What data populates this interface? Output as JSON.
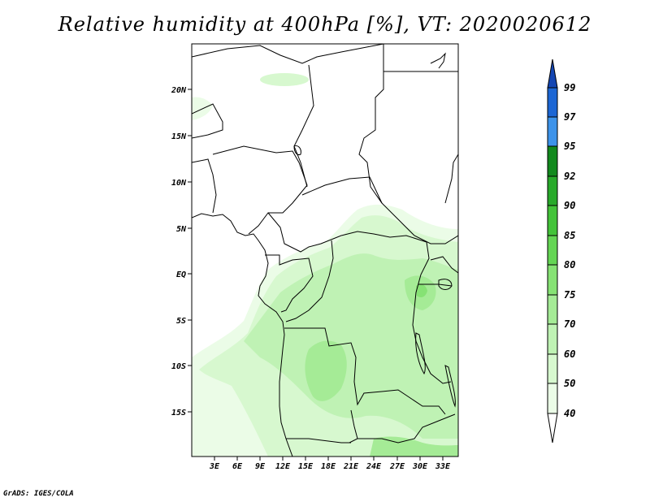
{
  "title": "Relative humidity at 400hPa [%], VT: 2020020612",
  "credit": "GrADS: IGES/COLA",
  "map": {
    "lat_ticks": [
      "20N",
      "15N",
      "10N",
      "5N",
      "EQ",
      "5S",
      "10S",
      "15S"
    ],
    "lon_ticks": [
      "3E",
      "6E",
      "9E",
      "12E",
      "15E",
      "18E",
      "21E",
      "24E",
      "27E",
      "30E",
      "33E"
    ]
  },
  "colorbar": {
    "labels": [
      "40",
      "50",
      "60",
      "70",
      "75",
      "80",
      "85",
      "90",
      "92",
      "95",
      "97",
      "99"
    ],
    "colors": [
      "#ffffff",
      "#ebfce7",
      "#d7f8cf",
      "#bff2b4",
      "#a5eb96",
      "#86e274",
      "#64d554",
      "#43c339",
      "#28a92a",
      "#12891d",
      "#3d93ea",
      "#1c66d4",
      "#1446b3"
    ]
  }
}
